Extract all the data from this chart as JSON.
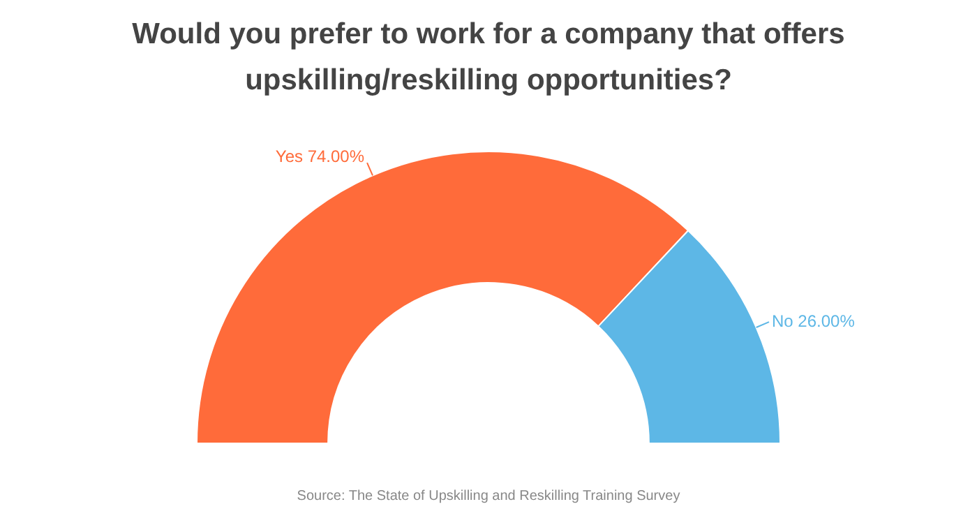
{
  "chart_data": {
    "type": "donut",
    "title": "Would you prefer to work for a company that offers upskilling/reskilling opportunities?",
    "categories": [
      "Yes",
      "No"
    ],
    "values": [
      74,
      26
    ],
    "colors": [
      "#ff6b3a",
      "#5db7e6"
    ],
    "value_labels": [
      "74.00%",
      "26.00%"
    ],
    "legend": false,
    "annotations": [
      "Source: The State of Upskilling and Reskilling Training Survey"
    ]
  }
}
